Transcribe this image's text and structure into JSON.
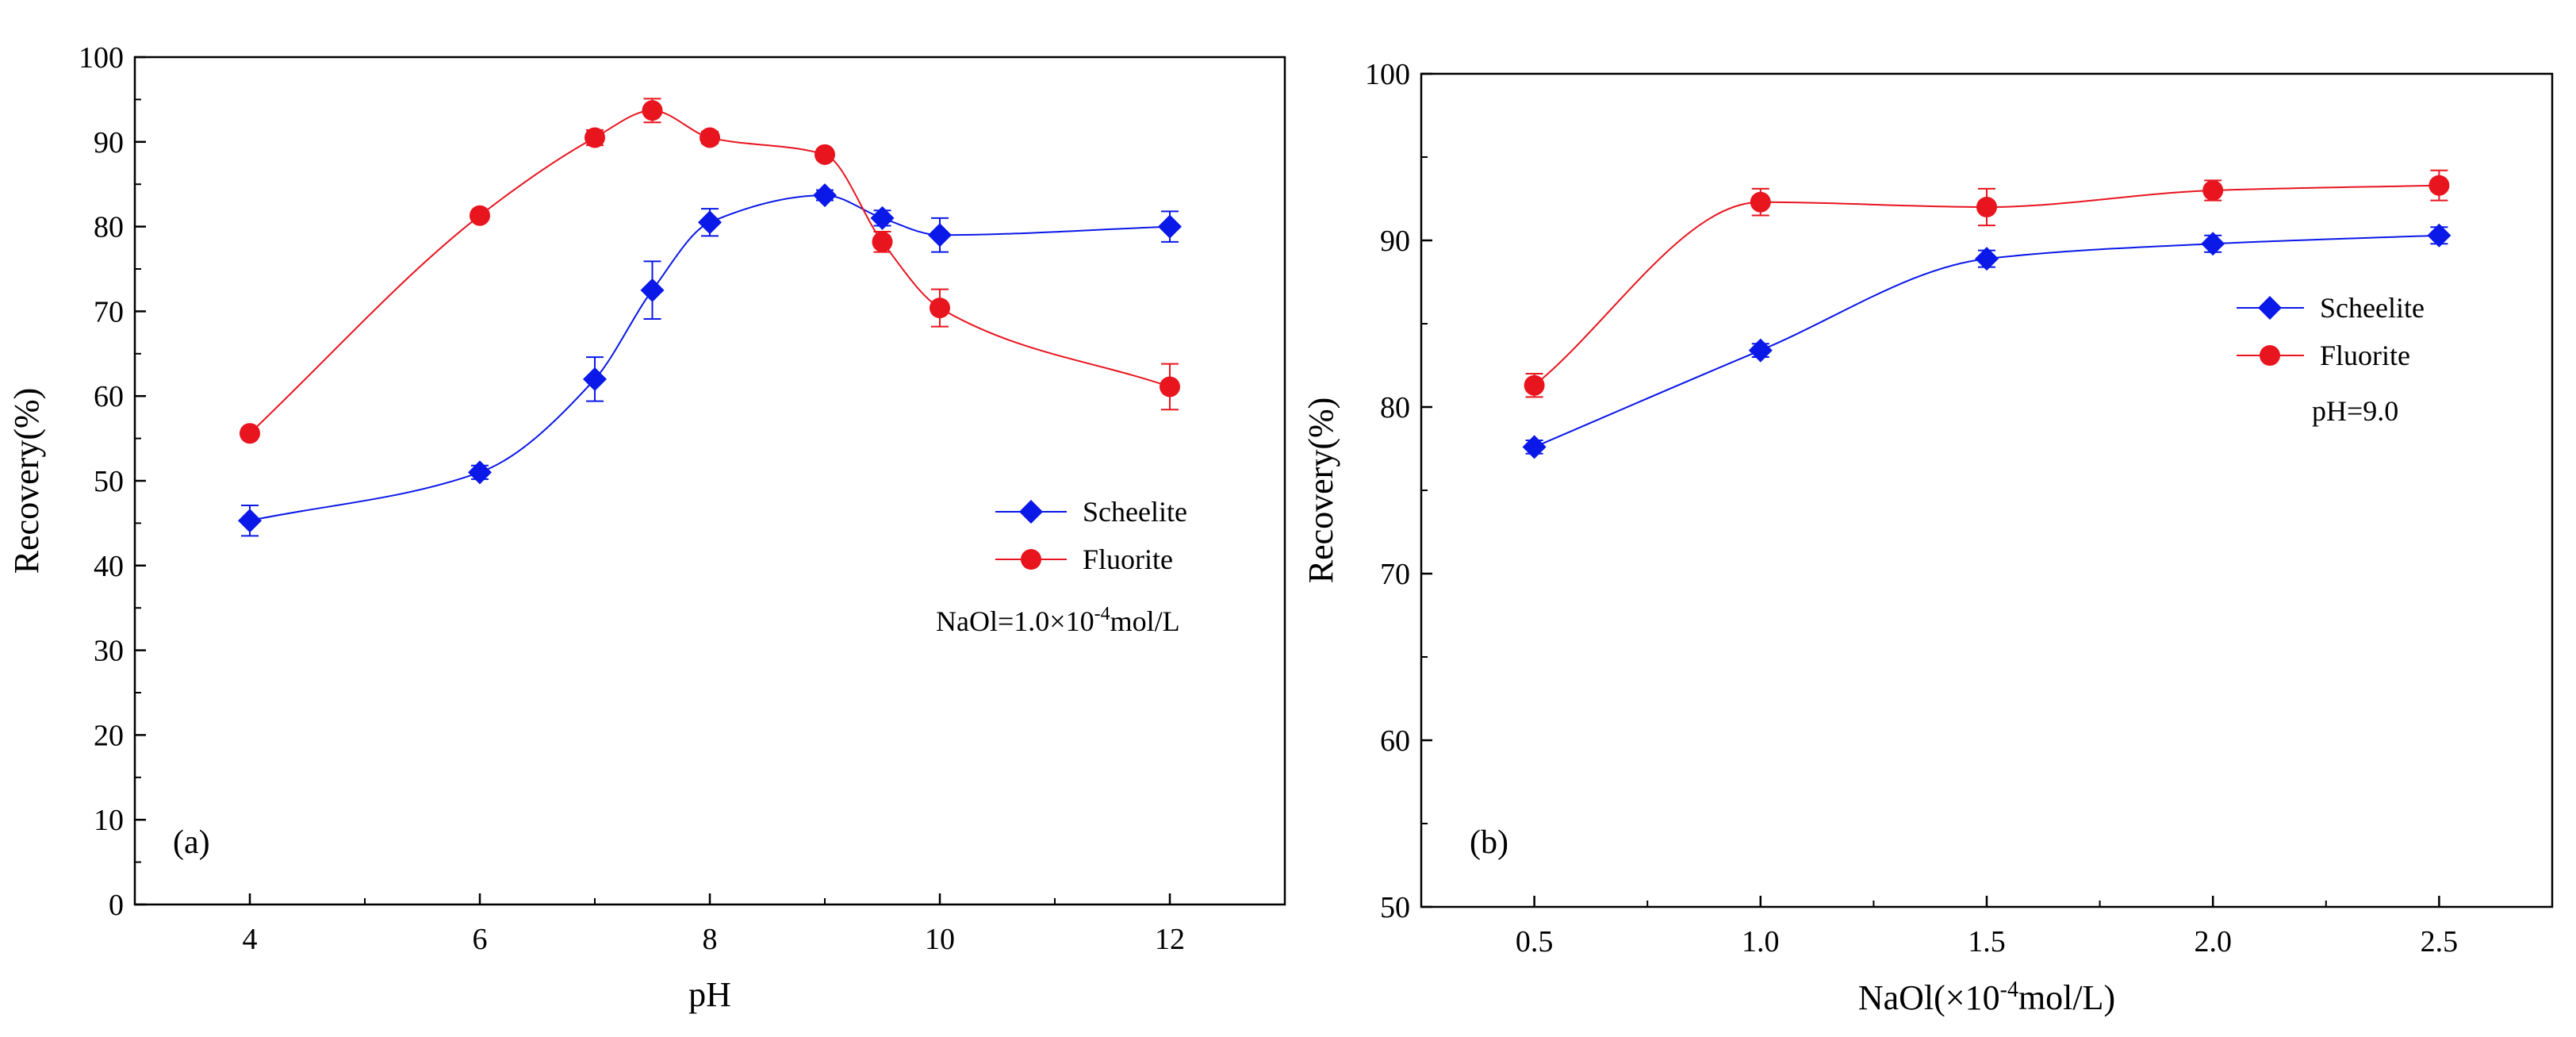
{
  "chart_data": [
    {
      "type": "line",
      "panel_label": "(a)",
      "xlabel": "pH",
      "ylabel": "Recovery(%)",
      "xlim": [
        3,
        13
      ],
      "ylim": [
        0,
        100
      ],
      "xticks": [
        "4",
        "6",
        "8",
        "10",
        "12"
      ],
      "yticks": [
        "0",
        "10",
        "20",
        "30",
        "40",
        "50",
        "60",
        "70",
        "80",
        "90",
        "100"
      ],
      "annotation": {
        "prefix": "NaOl=1.0×10",
        "exp": "-4",
        "suffix": "mol/L"
      },
      "legend_position": "right",
      "series": [
        {
          "name": "Scheelite",
          "marker": "diamond",
          "color": "#0a18e8",
          "x": [
            4,
            6,
            7,
            7.5,
            8,
            9,
            9.5,
            10,
            12
          ],
          "values": [
            45.3,
            51.0,
            62.0,
            72.5,
            80.5,
            83.7,
            81.0,
            79.0,
            80.0
          ],
          "errors": [
            1.8,
            0.8,
            2.6,
            3.4,
            1.6,
            0.6,
            0.9,
            2.0,
            1.8
          ]
        },
        {
          "name": "Fluorite",
          "marker": "circle",
          "color": "#e8141e",
          "x": [
            4,
            6,
            7,
            7.5,
            8,
            9,
            9.5,
            10,
            12
          ],
          "values": [
            55.6,
            81.3,
            90.5,
            93.7,
            90.5,
            88.5,
            78.2,
            70.4,
            61.1
          ],
          "errors": [
            0.5,
            0.6,
            0.9,
            1.4,
            0.7,
            0.6,
            1.2,
            2.2,
            2.7
          ]
        }
      ]
    },
    {
      "type": "line",
      "panel_label": "(b)",
      "xlabel": {
        "prefix": "NaOl(×10",
        "exp": "-4",
        "suffix": "mol/L)"
      },
      "ylabel": "Recovery(%)",
      "xlim": [
        0.25,
        2.75
      ],
      "ylim": [
        50,
        100
      ],
      "xticks": [
        "0.5",
        "1.0",
        "1.5",
        "2.0",
        "2.5"
      ],
      "yticks": [
        "50",
        "60",
        "70",
        "80",
        "90",
        "100"
      ],
      "annotation": "pH=9.0",
      "legend_position": "top-right",
      "series": [
        {
          "name": "Scheelite",
          "marker": "diamond",
          "color": "#0a18e8",
          "x": [
            0.5,
            1.0,
            1.5,
            2.0,
            2.5
          ],
          "values": [
            77.6,
            83.4,
            88.9,
            89.8,
            90.3
          ],
          "errors": [
            0.4,
            0.4,
            0.5,
            0.5,
            0.5
          ]
        },
        {
          "name": "Fluorite",
          "marker": "circle",
          "color": "#e8141e",
          "x": [
            0.5,
            1.0,
            1.5,
            2.0,
            2.5
          ],
          "values": [
            81.3,
            92.3,
            92.0,
            93.0,
            93.3
          ],
          "errors": [
            0.7,
            0.8,
            1.1,
            0.6,
            0.9
          ]
        }
      ]
    }
  ]
}
